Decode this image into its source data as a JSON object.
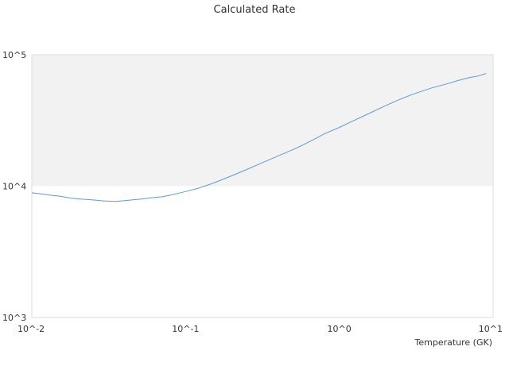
{
  "chart_data": {
    "type": "line",
    "title": "Calculated Rate",
    "xlabel": "Temperature (GK)",
    "ylabel": "",
    "x_scale": "log",
    "y_scale": "log",
    "xlim": [
      0.01,
      10
    ],
    "ylim": [
      1000,
      100000
    ],
    "x_ticks": [
      {
        "value": 0.01,
        "label": "10^-2"
      },
      {
        "value": 0.1,
        "label": "10^-1"
      },
      {
        "value": 1,
        "label": "10^0"
      },
      {
        "value": 10,
        "label": "10^1"
      }
    ],
    "y_ticks": [
      {
        "value": 1000,
        "label": "10^3"
      },
      {
        "value": 10000,
        "label": "10^4"
      },
      {
        "value": 100000,
        "label": "10^5"
      }
    ],
    "grid": false,
    "bands": [
      {
        "from": 10000,
        "to": 100000,
        "color": "#f2f2f2"
      }
    ],
    "series": [
      {
        "color": "#5b9bd5",
        "x": [
          0.01,
          0.011,
          0.013,
          0.015,
          0.018,
          0.02,
          0.025,
          0.03,
          0.035,
          0.04,
          0.05,
          0.06,
          0.07,
          0.08,
          0.1,
          0.12,
          0.15,
          0.2,
          0.25,
          0.3,
          0.4,
          0.5,
          0.6,
          0.7,
          0.8,
          1.0,
          1.2,
          1.5,
          2.0,
          2.5,
          3.0,
          4.0,
          5.0,
          6.0,
          7.0,
          8.0,
          9.0
        ],
        "values": [
          8900,
          8800,
          8550,
          8400,
          8100,
          8000,
          7850,
          7700,
          7650,
          7750,
          7950,
          8150,
          8300,
          8550,
          9100,
          9600,
          10500,
          12000,
          13400,
          14700,
          17000,
          19000,
          21000,
          23000,
          25000,
          28000,
          31000,
          35000,
          41000,
          46000,
          50000,
          56000,
          60000,
          64000,
          67000,
          69000,
          72000
        ]
      }
    ]
  }
}
